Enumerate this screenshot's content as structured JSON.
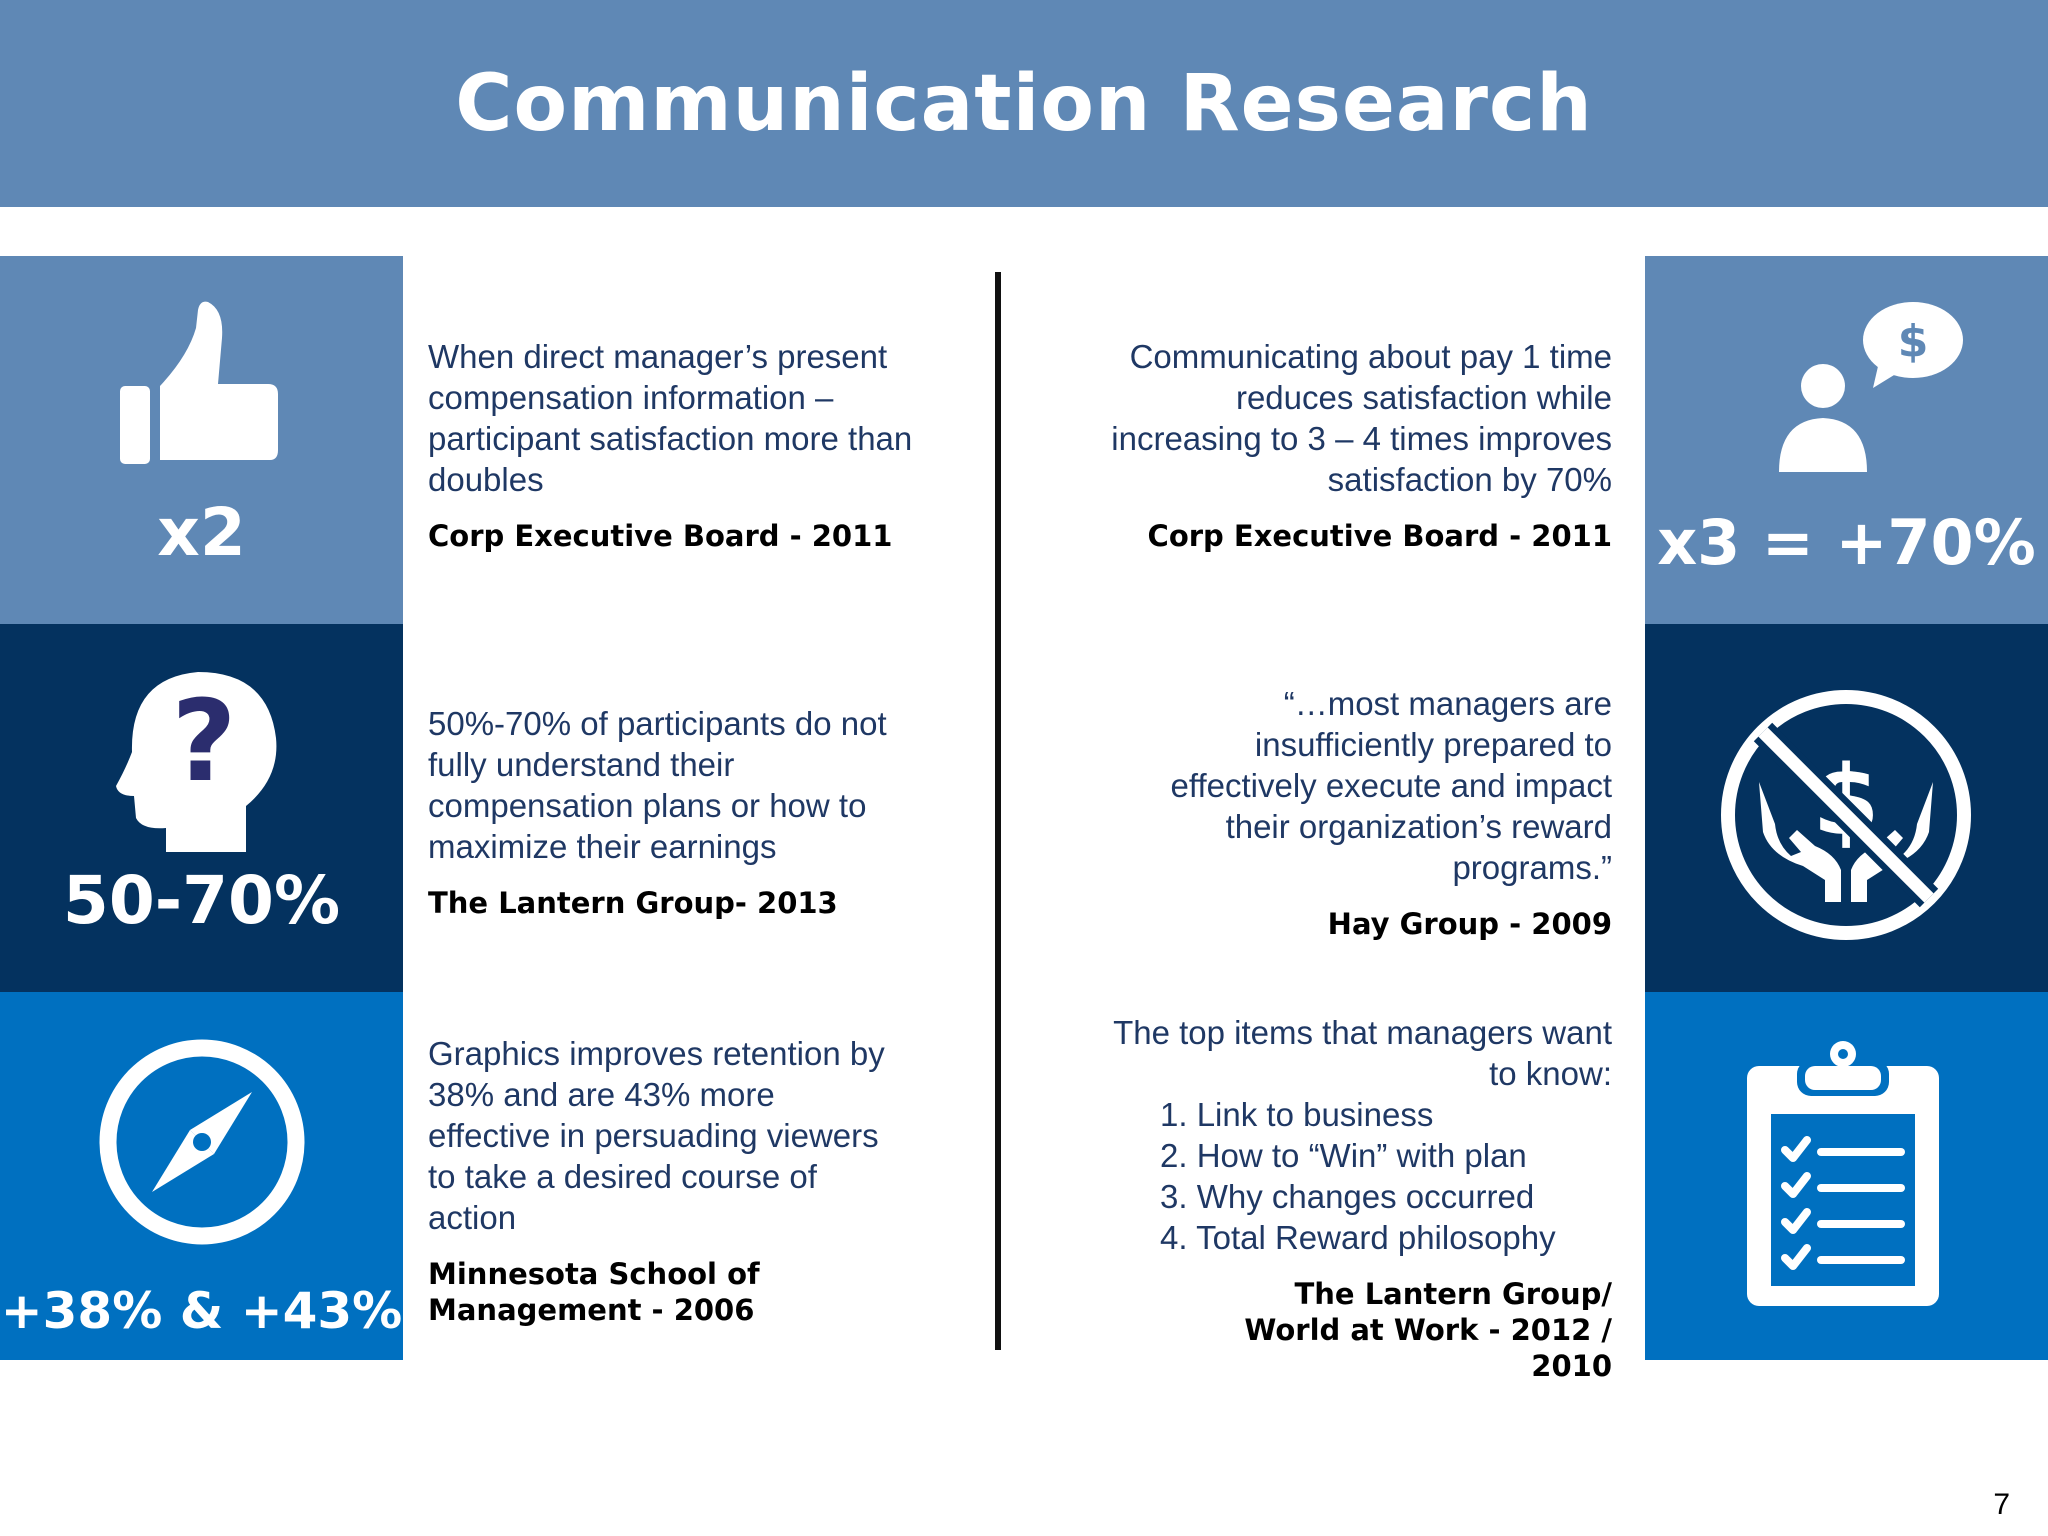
{
  "title": "Communication Research",
  "page_number": "7",
  "colors": {
    "header": "#5f88b5",
    "row1": "#5f88b5",
    "row2": "#04325f",
    "row3": "#0070c0",
    "text": "#1f3864"
  },
  "left": [
    {
      "icon": "thumbs-up-icon",
      "stat": "x2",
      "text": "When direct manager’s present compensation information – participant satisfaction more than doubles",
      "source": "Corp Executive Board - 2011"
    },
    {
      "icon": "head-question-icon",
      "stat": "50-70%",
      "text": "50%-70% of participants do not fully understand their compensation plans or how to maximize their earnings",
      "source": "The Lantern Group- 2013"
    },
    {
      "icon": "compass-icon",
      "stat": "+38% & +43%",
      "text": "Graphics improves retention by 38% and are 43% more effective in persuading viewers to take a desired course of action",
      "source": "Minnesota School of Management - 2006"
    }
  ],
  "right": [
    {
      "icon": "person-dollar-speech-icon",
      "stat": "x3 = +70%",
      "text": "Communicating about pay 1 time reduces satisfaction while increasing to 3 – 4 times improves satisfaction by 70%",
      "source": "Corp Executive Board - 2011"
    },
    {
      "icon": "no-money-hands-icon",
      "text": "“…most managers are insufficiently prepared to effectively execute and impact their organization’s reward programs.”",
      "source": "Hay Group - 2009"
    },
    {
      "icon": "clipboard-checklist-icon",
      "text": "The top items that managers want to know:",
      "items": [
        "1. Link to business",
        "2. How to “Win” with plan",
        "3. Why changes occurred",
        "4. Total Reward philosophy"
      ],
      "source": "The Lantern Group/ World at Work - 2012 / 2010"
    }
  ]
}
